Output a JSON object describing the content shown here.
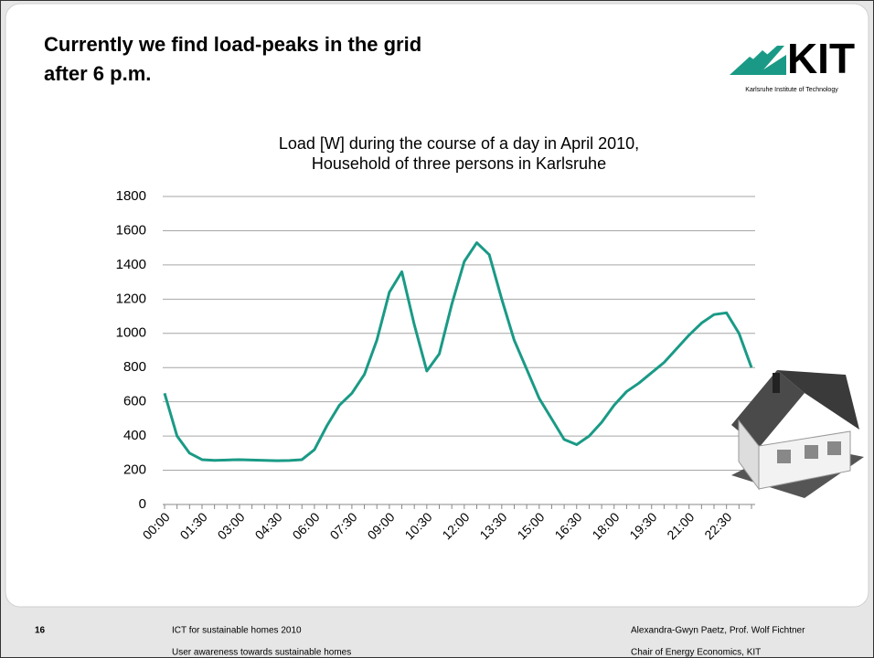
{
  "slide": {
    "title": [
      "Currently we find load-peaks in the grid",
      "after 6 p.m."
    ]
  },
  "logo": {
    "name": "KIT",
    "subtitle": "Karlsruhe Institute of Technology"
  },
  "chart_data": {
    "type": "line",
    "title": [
      "Load [W] during the course of a day in April 2010,",
      "Household of three persons in Karlsruhe"
    ],
    "categories": [
      "00:00",
      null,
      null,
      "01:30",
      null,
      null,
      "03:00",
      null,
      null,
      "04:30",
      null,
      null,
      "06:00",
      null,
      null,
      "07:30",
      null,
      null,
      "09:00",
      null,
      null,
      "10:30",
      null,
      null,
      "12:00",
      null,
      null,
      "13:30",
      null,
      null,
      "15:00",
      null,
      null,
      "16:30",
      null,
      null,
      "18:00",
      null,
      null,
      "19:30",
      null,
      null,
      "21:00",
      null,
      null,
      "22:30",
      null,
      null
    ],
    "values": [
      650,
      400,
      300,
      262,
      258,
      260,
      262,
      260,
      258,
      256,
      257,
      262,
      320,
      460,
      580,
      650,
      760,
      960,
      1240,
      1360,
      1050,
      780,
      880,
      1170,
      1420,
      1530,
      1460,
      1200,
      960,
      790,
      620,
      500,
      380,
      350,
      400,
      480,
      580,
      660,
      710,
      770,
      830,
      910,
      990,
      1060,
      1110,
      1120,
      1000,
      800
    ],
    "color": "#1a9a86",
    "ylim": [
      0,
      1800
    ],
    "yticks": [
      0,
      200,
      400,
      600,
      800,
      1000,
      1200,
      1400,
      1600,
      1800
    ],
    "grid": true
  },
  "footer": {
    "page": "16",
    "left": [
      "ICT for sustainable homes 2010",
      "User awareness towards sustainable homes"
    ],
    "right": [
      "Alexandra-Gwyn Paetz, Prof. Wolf Fichtner",
      "Chair of Energy Economics, KIT"
    ]
  }
}
